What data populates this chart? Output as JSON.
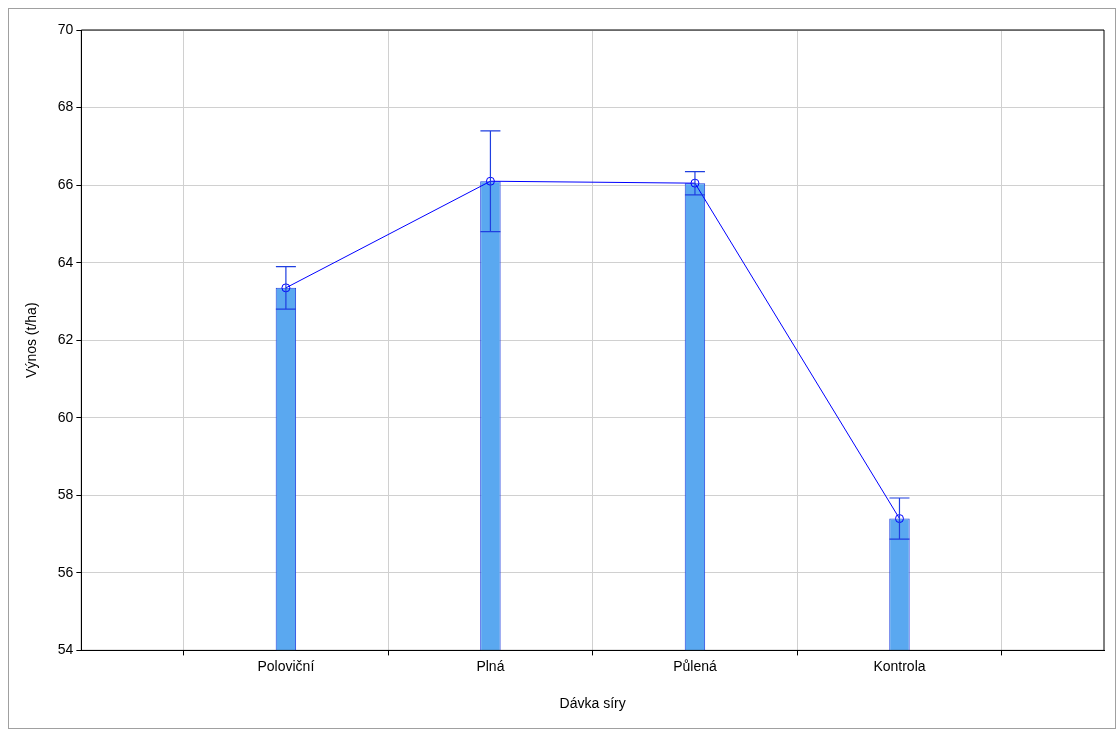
{
  "chart_data": {
    "type": "bar",
    "xlabel": "Dávka síry",
    "ylabel": "Výnos (t/ha)",
    "categories": [
      "Poloviční",
      "Plná",
      "Půlená",
      "Kontrola"
    ],
    "series": [
      {
        "color": "#5aa8f0",
        "values": [
          63.35,
          66.1,
          66.05,
          57.4
        ],
        "errors": [
          0.55,
          1.3,
          0.3,
          0.53
        ]
      },
      {
        "type": "line",
        "color": "#0000ff",
        "values": [
          63.35,
          66.1,
          66.05,
          57.4
        ]
      }
    ],
    "ylim": [
      54,
      70
    ],
    "yticks": [
      54,
      56,
      58,
      60,
      62,
      64,
      66,
      68,
      70
    ],
    "grid": true,
    "legend": false,
    "marker": "circle",
    "line_style": "solid"
  }
}
